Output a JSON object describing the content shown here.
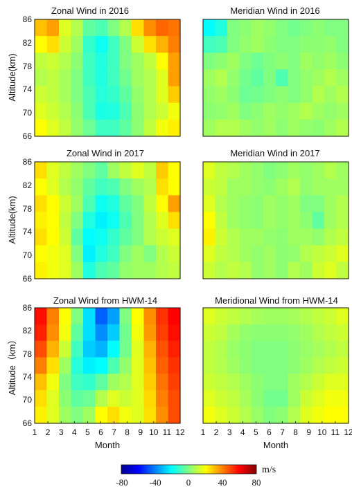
{
  "chart_data": [
    {
      "type": "heatmap",
      "title": "Zonal Wind in 2016",
      "ylabel": "Altitude(km)",
      "xlabel": "",
      "ylim": [
        66,
        86
      ],
      "yticks": [
        "66",
        "70",
        "74",
        "78",
        "82",
        "86"
      ],
      "x_tick_labels_shown": false,
      "z": [
        [
          30,
          35,
          15,
          8,
          -5,
          -8,
          0,
          8,
          25,
          38,
          44,
          42
        ],
        [
          20,
          25,
          12,
          5,
          -12,
          -18,
          -10,
          0,
          12,
          25,
          32,
          40
        ],
        [
          10,
          12,
          8,
          2,
          -10,
          -15,
          -10,
          0,
          5,
          10,
          20,
          35
        ],
        [
          8,
          10,
          6,
          0,
          -10,
          -15,
          -10,
          -2,
          5,
          8,
          15,
          35
        ],
        [
          12,
          10,
          6,
          0,
          -8,
          -14,
          -12,
          -5,
          3,
          8,
          15,
          28
        ],
        [
          15,
          12,
          8,
          2,
          -8,
          -16,
          -15,
          -8,
          2,
          8,
          12,
          18
        ],
        [
          20,
          15,
          10,
          3,
          -3,
          -10,
          -10,
          -5,
          2,
          10,
          18,
          22
        ]
      ]
    },
    {
      "type": "heatmap",
      "title": "Meridian Wind in 2016",
      "ylabel": "",
      "xlabel": "",
      "ylim": [
        66,
        86
      ],
      "x_tick_labels_shown": false,
      "y_tick_labels_shown": false,
      "z": [
        [
          -20,
          -15,
          0,
          2,
          5,
          3,
          0,
          -2,
          0,
          2,
          0,
          0
        ],
        [
          -10,
          -8,
          0,
          3,
          5,
          2,
          0,
          0,
          2,
          2,
          3,
          0
        ],
        [
          0,
          2,
          5,
          0,
          -3,
          0,
          2,
          0,
          5,
          3,
          5,
          2
        ],
        [
          5,
          8,
          3,
          -2,
          -5,
          0,
          -8,
          0,
          3,
          5,
          8,
          5
        ],
        [
          3,
          5,
          2,
          -3,
          -2,
          0,
          2,
          0,
          3,
          8,
          5,
          8
        ],
        [
          2,
          3,
          5,
          0,
          2,
          5,
          3,
          5,
          8,
          5,
          3,
          5
        ],
        [
          5,
          8,
          8,
          5,
          3,
          5,
          2,
          5,
          3,
          2,
          5,
          8
        ]
      ]
    },
    {
      "type": "heatmap",
      "title": "Zonal Wind in 2017",
      "ylabel": "Altitude(km)",
      "xlabel": "",
      "ylim": [
        66,
        86
      ],
      "yticks": [
        "66",
        "70",
        "74",
        "78",
        "82",
        "86"
      ],
      "x_tick_labels_shown": false,
      "z": [
        [
          25,
          15,
          10,
          5,
          0,
          -5,
          5,
          10,
          15,
          10,
          28,
          20
        ],
        [
          20,
          15,
          8,
          3,
          -5,
          -10,
          -8,
          0,
          5,
          8,
          25,
          20
        ],
        [
          25,
          20,
          12,
          5,
          -8,
          -18,
          -15,
          -5,
          0,
          10,
          20,
          35
        ],
        [
          22,
          20,
          10,
          0,
          -15,
          -22,
          -18,
          -8,
          0,
          8,
          15,
          25
        ],
        [
          25,
          20,
          12,
          -5,
          -20,
          -18,
          -12,
          -5,
          0,
          8,
          12,
          15
        ],
        [
          20,
          18,
          15,
          0,
          -22,
          -15,
          -10,
          0,
          5,
          0,
          8,
          12
        ],
        [
          22,
          18,
          15,
          5,
          -15,
          -8,
          -5,
          3,
          5,
          5,
          8,
          10
        ]
      ]
    },
    {
      "type": "heatmap",
      "title": "Meridian Wind in 2017",
      "ylabel": "",
      "xlabel": "",
      "ylim": [
        66,
        86
      ],
      "x_tick_labels_shown": false,
      "y_tick_labels_shown": false,
      "z": [
        [
          15,
          10,
          8,
          5,
          3,
          0,
          2,
          5,
          3,
          5,
          8,
          5
        ],
        [
          12,
          10,
          5,
          5,
          3,
          2,
          5,
          8,
          3,
          5,
          5,
          5
        ],
        [
          15,
          8,
          5,
          3,
          2,
          5,
          3,
          5,
          0,
          0,
          5,
          8
        ],
        [
          20,
          10,
          5,
          3,
          2,
          5,
          3,
          5,
          2,
          -5,
          5,
          8
        ],
        [
          22,
          12,
          8,
          5,
          5,
          3,
          2,
          5,
          5,
          3,
          8,
          10
        ],
        [
          15,
          10,
          8,
          5,
          3,
          5,
          2,
          3,
          8,
          10,
          12,
          15
        ],
        [
          12,
          8,
          10,
          8,
          3,
          5,
          2,
          8,
          5,
          12,
          15,
          10
        ]
      ]
    },
    {
      "type": "heatmap",
      "title": "Zonal Wind from HWM-14",
      "ylabel": "Altitude（km）",
      "xlabel": "Month",
      "ylim": [
        66,
        86
      ],
      "yticks": [
        "66",
        "70",
        "74",
        "78",
        "82",
        "86"
      ],
      "x": [
        "1",
        "2",
        "3",
        "4",
        "5",
        "6",
        "7",
        "8",
        "9",
        "10",
        "11",
        "12"
      ],
      "z": [
        [
          58,
          40,
          20,
          0,
          -25,
          -45,
          -35,
          0,
          20,
          38,
          52,
          60
        ],
        [
          55,
          38,
          18,
          -5,
          -25,
          -38,
          -28,
          -2,
          18,
          36,
          50,
          58
        ],
        [
          48,
          32,
          12,
          -10,
          -28,
          -32,
          -20,
          -2,
          15,
          32,
          47,
          55
        ],
        [
          40,
          25,
          5,
          -14,
          -22,
          -20,
          -8,
          3,
          15,
          30,
          45,
          52
        ],
        [
          30,
          18,
          0,
          -10,
          -12,
          -5,
          5,
          8,
          15,
          28,
          42,
          50
        ],
        [
          25,
          15,
          2,
          -5,
          -3,
          8,
          15,
          12,
          15,
          26,
          40,
          48
        ],
        [
          22,
          15,
          5,
          0,
          5,
          20,
          25,
          18,
          15,
          25,
          38,
          48
        ]
      ]
    },
    {
      "type": "heatmap",
      "title": "Meridional Wind from HWM-14",
      "ylabel": "",
      "xlabel": "Month",
      "ylim": [
        66,
        86
      ],
      "x": [
        "1",
        "2",
        "3",
        "4",
        "5",
        "6",
        "7",
        "8",
        "9",
        "10",
        "11",
        "12"
      ],
      "z": [
        [
          15,
          12,
          10,
          8,
          6,
          5,
          5,
          6,
          8,
          10,
          12,
          15
        ],
        [
          12,
          10,
          6,
          3,
          2,
          2,
          2,
          3,
          5,
          8,
          10,
          12
        ],
        [
          10,
          8,
          4,
          2,
          0,
          0,
          0,
          2,
          4,
          6,
          8,
          10
        ],
        [
          10,
          8,
          5,
          2,
          0,
          0,
          0,
          2,
          5,
          8,
          10,
          12
        ],
        [
          12,
          10,
          8,
          5,
          2,
          0,
          0,
          5,
          8,
          12,
          15,
          15
        ],
        [
          15,
          12,
          10,
          6,
          2,
          -2,
          -2,
          5,
          12,
          15,
          18,
          18
        ],
        [
          18,
          15,
          12,
          8,
          4,
          0,
          2,
          8,
          15,
          18,
          20,
          20
        ]
      ]
    }
  ],
  "colorbar": {
    "min": -80,
    "max": 80,
    "ticks": [
      "-80",
      "-40",
      "0",
      "40",
      "80"
    ],
    "unit": "m/s",
    "colormap": [
      "#00008f",
      "#0000ff",
      "#0080ff",
      "#00ffff",
      "#80ff80",
      "#ffff00",
      "#ff8000",
      "#ff0000",
      "#800000"
    ]
  }
}
